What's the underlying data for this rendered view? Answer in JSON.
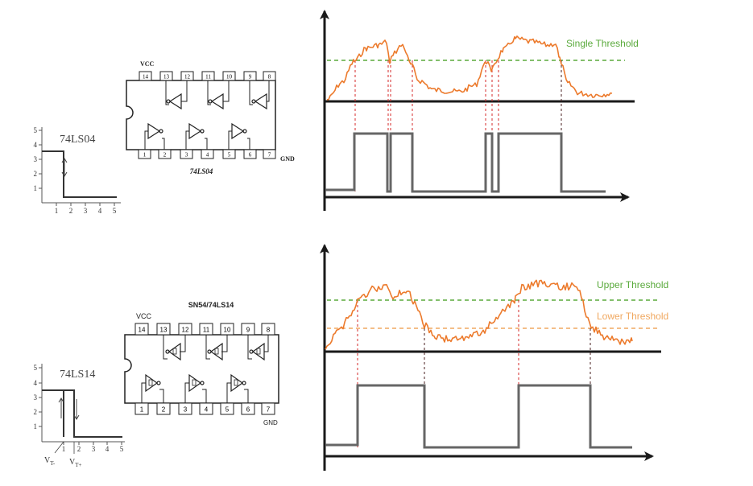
{
  "colors": {
    "signal": "#ec7a2c",
    "output": "#666666",
    "axis": "#1a1a1a",
    "single_threshold": "#5aaa3c",
    "upper_threshold": "#5aaa3c",
    "lower_threshold": "#f0a860",
    "drop_red": "#d42a2a",
    "drop_dark": "#4a1f1f"
  },
  "panels": [
    {
      "chip_name": "74LS04",
      "chip_label": "74LS04",
      "vcc": "VCC",
      "gnd": "GND",
      "top_pins": [
        "14",
        "13",
        "12",
        "11",
        "10",
        "9",
        "8"
      ],
      "bottom_pins": [
        "1",
        "2",
        "3",
        "4",
        "5",
        "6",
        "7"
      ],
      "transfer_y_ticks": [
        "1",
        "2",
        "3",
        "4",
        "5"
      ],
      "transfer_x_ticks": [
        "1",
        "2",
        "3",
        "4",
        "5"
      ],
      "thresholds": [
        {
          "label": "Single Threshold",
          "color_key": "single_threshold"
        }
      ]
    },
    {
      "chip_name": "SN54/74LS14",
      "chip_label": "74LS14",
      "vcc": "VCC",
      "gnd": "GND",
      "top_pins": [
        "14",
        "13",
        "12",
        "11",
        "10",
        "9",
        "8"
      ],
      "bottom_pins": [
        "1",
        "2",
        "3",
        "4",
        "5",
        "6",
        "7"
      ],
      "transfer_y_ticks": [
        "1",
        "2",
        "3",
        "4",
        "5"
      ],
      "transfer_x_ticks": [
        "1",
        "2",
        "3",
        "4",
        "5"
      ],
      "vt_minus": "V",
      "vt_minus_sub": "T-",
      "vt_plus": "V",
      "vt_plus_sub": "T+",
      "thresholds": [
        {
          "label": "Upper Threshold",
          "color_key": "upper_threshold"
        },
        {
          "label": "Lower Threshold",
          "color_key": "lower_threshold"
        }
      ]
    }
  ]
}
